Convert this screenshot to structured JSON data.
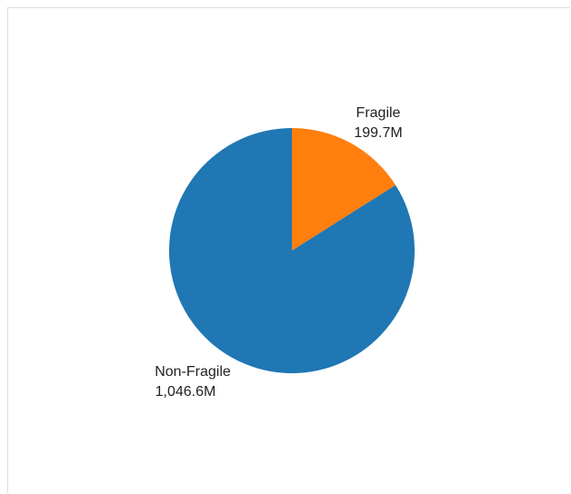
{
  "chart_data": {
    "type": "pie",
    "slices": [
      {
        "label": "Fragile",
        "value": 199.7,
        "value_text": "199.7M",
        "color": "#ff7f0e"
      },
      {
        "label": "Non-Fragile",
        "value": 1046.6,
        "value_text": "1,046.6M",
        "color": "#1f77b4"
      }
    ],
    "start": "12 o'clock",
    "direction": "clockwise",
    "legend": "none"
  }
}
